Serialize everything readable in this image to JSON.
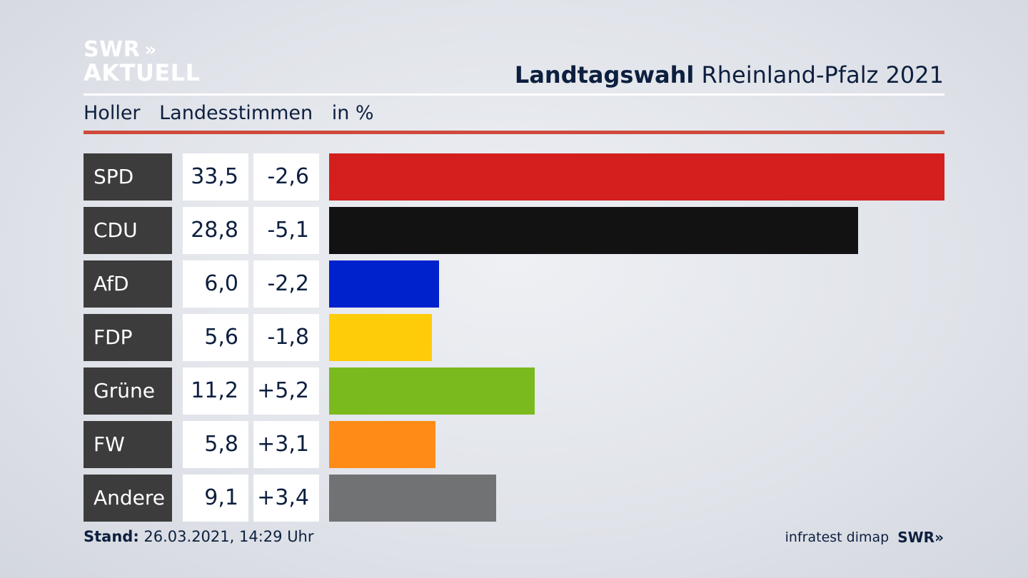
{
  "brand": {
    "line1": "SWR",
    "line2": "AKTUELL",
    "chevrons": "»"
  },
  "header": {
    "title_bold": "Landtagswahl",
    "title_rest": "Rheinland-Pfalz 2021"
  },
  "subheader": {
    "place": "Holler",
    "category": "Landesstimmen",
    "unit": "in %"
  },
  "colors": {
    "SPD": "#d51f1f",
    "CDU": "#121212",
    "AfD": "#0022cc",
    "FDP": "#ffcc0a",
    "Grüne": "#7aba1e",
    "FW": "#ff8c17",
    "Andere": "#717273"
  },
  "chart_data": {
    "type": "bar",
    "orientation": "horizontal",
    "categories": [
      "SPD",
      "CDU",
      "AfD",
      "FDP",
      "Grüne",
      "FW",
      "Andere"
    ],
    "values": [
      33.5,
      28.8,
      6.0,
      5.6,
      11.2,
      5.8,
      9.1
    ],
    "value_labels": [
      "33,5",
      "28,8",
      "6,0",
      "5,6",
      "11,2",
      "5,8",
      "9,1"
    ],
    "changes": [
      -2.6,
      -5.1,
      -2.2,
      -1.8,
      5.2,
      3.1,
      3.4
    ],
    "change_labels": [
      "-2,6",
      "-5,1",
      "-2,2",
      "-1,8",
      "+5,2",
      "+3,1",
      "+3,4"
    ],
    "title": "Landtagswahl Rheinland-Pfalz 2021",
    "xlabel": "",
    "ylabel": "",
    "xlim": [
      0,
      33.5
    ],
    "grid": false,
    "legend": "none"
  },
  "footer": {
    "stand_label": "Stand:",
    "stand_value": "26.03.2021, 14:29 Uhr",
    "source": "infratest dimap",
    "brand": "SWR",
    "brand_chevrons": "»"
  }
}
